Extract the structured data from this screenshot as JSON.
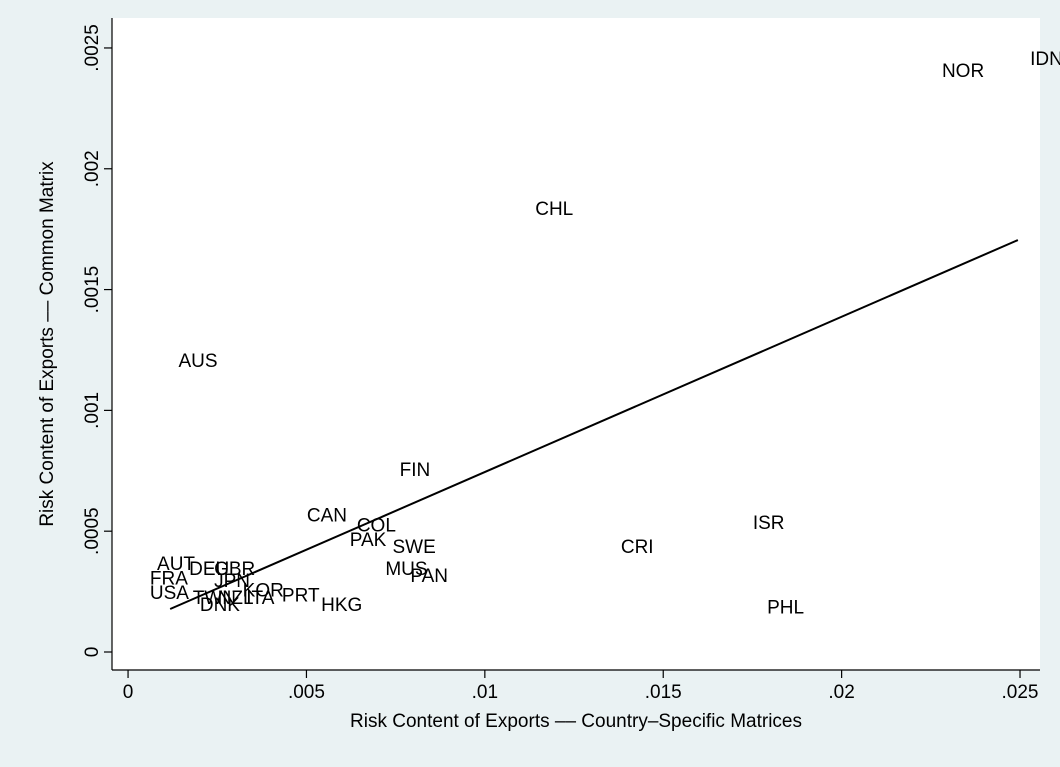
{
  "chart_data": {
    "type": "scatter",
    "x_label": "Risk Content of Exports –– Country–Specific Matrices",
    "y_label": "Risk Content of Exports –– Common Matrix",
    "labels": [
      "IDN",
      "NOR",
      "CHL",
      "AUS",
      "FIN",
      "CAN",
      "COL",
      "PAK",
      "SWE",
      "CRI",
      "ISR",
      "MUS",
      "PAN",
      "PHL",
      "HKG",
      "PRT",
      "ITA",
      "KOR",
      "AUT",
      "FRA",
      "USA",
      "DEU",
      "GBR",
      "JPN",
      "TWN",
      "DNK",
      "NZL"
    ],
    "x": [
      0.02517,
      0.0227,
      0.0113,
      0.0013,
      0.0075,
      0.0049,
      0.0063,
      0.0061,
      0.0073,
      0.0137,
      0.0174,
      0.0071,
      0.0078,
      0.0178,
      0.0053,
      0.0042,
      0.0032,
      0.0031,
      0.0007,
      0.0005,
      0.0005,
      0.0016,
      0.0023,
      0.0023,
      0.0017,
      0.0019,
      0.0024
    ],
    "values": [
      0.00245,
      0.0024,
      0.00183,
      0.0012,
      0.00075,
      0.00056,
      0.00052,
      0.00046,
      0.00043,
      0.00043,
      0.00053,
      0.00034,
      0.00031,
      0.00018,
      0.00019,
      0.00023,
      0.00022,
      0.00025,
      0.00036,
      0.0003,
      0.00024,
      0.00034,
      0.00034,
      0.00029,
      0.00022,
      0.00019,
      0.00022
    ],
    "fit_line": {
      "x": [
        0.00118,
        0.02494
      ],
      "values": [
        0.000178,
        0.001705
      ],
      "color": "#000000"
    },
    "xlim": [
      -0.00045,
      0.02556
    ],
    "ylim": [
      -7.45e-05,
      0.002624
    ],
    "xticks": [
      0,
      {
        "value": 0.005,
        "label": ".005"
      },
      {
        "value": 0.01,
        "label": ".01"
      },
      {
        "value": 0.015,
        "label": ".015"
      },
      {
        "value": 0.02,
        "label": ".02"
      },
      {
        "value": 0.025,
        "label": ".025"
      }
    ],
    "yticks": [
      0,
      {
        "value": 0.0005,
        "label": ".0005"
      },
      {
        "value": 0.001,
        "label": ".001"
      },
      {
        "value": 0.0015,
        "label": ".0015"
      },
      {
        "value": 0.002,
        "label": ".002"
      },
      {
        "value": 0.0025,
        "label": ".0025"
      }
    ]
  }
}
